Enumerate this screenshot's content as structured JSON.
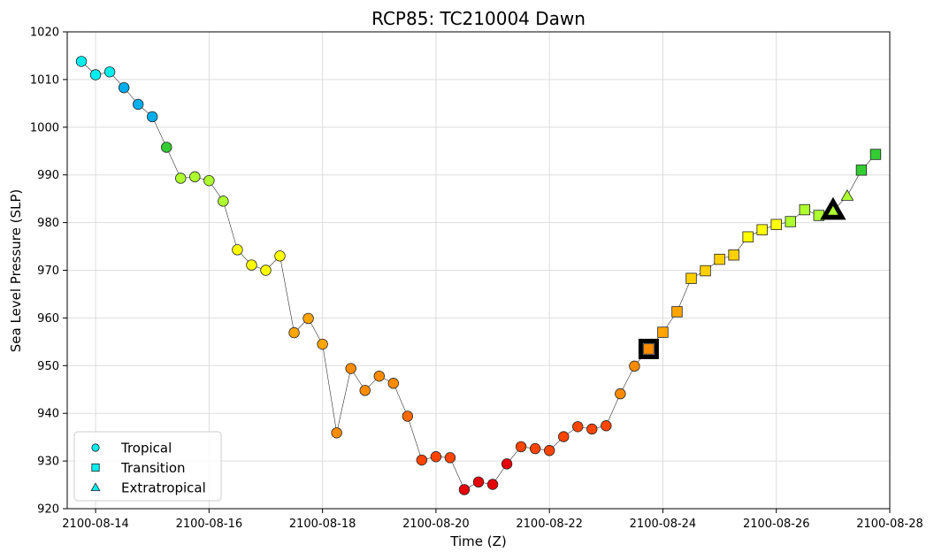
{
  "chart_data": {
    "type": "scatter",
    "title": "RCP85: TC210004 Dawn",
    "xlabel": "Time (Z)",
    "ylabel": "Sea Level Pressure (SLP)",
    "xlim": [
      "2100-08-13T12:00Z",
      "2100-08-28T00:00Z"
    ],
    "ylim": [
      920,
      1020
    ],
    "xticks": [
      "2100-08-14",
      "2100-08-16",
      "2100-08-18",
      "2100-08-20",
      "2100-08-22",
      "2100-08-24",
      "2100-08-26",
      "2100-08-28"
    ],
    "yticks": [
      920,
      930,
      940,
      950,
      960,
      970,
      980,
      990,
      1000,
      1010,
      1020
    ],
    "grid": true,
    "legend": {
      "position": "lower-left",
      "entries": [
        {
          "label": "Tropical",
          "marker": "circle"
        },
        {
          "label": "Transition",
          "marker": "square"
        },
        {
          "label": "Extratropical",
          "marker": "triangle"
        }
      ]
    },
    "connecting_line": true,
    "highlights": [
      {
        "time": "2100-08-23T18:00Z",
        "slp": 953.5,
        "marker": "square"
      },
      {
        "time": "2100-08-27T00:00Z",
        "slp": 982.5,
        "marker": "triangle"
      }
    ],
    "points": [
      {
        "time": "2100-08-13T18:00Z",
        "slp": 1013.8,
        "marker": "circle",
        "color": "#00eeee"
      },
      {
        "time": "2100-08-14T00:00Z",
        "slp": 1011.0,
        "marker": "circle",
        "color": "#00eeee"
      },
      {
        "time": "2100-08-14T06:00Z",
        "slp": 1011.6,
        "marker": "circle",
        "color": "#00eeee"
      },
      {
        "time": "2100-08-14T12:00Z",
        "slp": 1008.3,
        "marker": "circle",
        "color": "#00aeee"
      },
      {
        "time": "2100-08-14T18:00Z",
        "slp": 1004.8,
        "marker": "circle",
        "color": "#00aeee"
      },
      {
        "time": "2100-08-15T00:00Z",
        "slp": 1002.2,
        "marker": "circle",
        "color": "#00aeee"
      },
      {
        "time": "2100-08-15T06:00Z",
        "slp": 995.8,
        "marker": "circle",
        "color": "#33cc33"
      },
      {
        "time": "2100-08-15T12:00Z",
        "slp": 989.3,
        "marker": "circle",
        "color": "#adff2f"
      },
      {
        "time": "2100-08-15T18:00Z",
        "slp": 989.6,
        "marker": "circle",
        "color": "#adff2f"
      },
      {
        "time": "2100-08-16T00:00Z",
        "slp": 988.8,
        "marker": "circle",
        "color": "#adff2f"
      },
      {
        "time": "2100-08-16T06:00Z",
        "slp": 984.5,
        "marker": "circle",
        "color": "#adff2f"
      },
      {
        "time": "2100-08-16T12:00Z",
        "slp": 974.3,
        "marker": "circle",
        "color": "#ffff00"
      },
      {
        "time": "2100-08-16T18:00Z",
        "slp": 971.1,
        "marker": "circle",
        "color": "#ffff00"
      },
      {
        "time": "2100-08-17T00:00Z",
        "slp": 970.0,
        "marker": "circle",
        "color": "#ffff00"
      },
      {
        "time": "2100-08-17T06:00Z",
        "slp": 973.0,
        "marker": "circle",
        "color": "#ffff00"
      },
      {
        "time": "2100-08-17T12:00Z",
        "slp": 956.9,
        "marker": "circle",
        "color": "#ffa500"
      },
      {
        "time": "2100-08-17T18:00Z",
        "slp": 959.9,
        "marker": "circle",
        "color": "#ffa500"
      },
      {
        "time": "2100-08-18T00:00Z",
        "slp": 954.5,
        "marker": "circle",
        "color": "#ffa500"
      },
      {
        "time": "2100-08-18T06:00Z",
        "slp": 935.9,
        "marker": "circle",
        "color": "#ff8c00"
      },
      {
        "time": "2100-08-18T12:00Z",
        "slp": 949.4,
        "marker": "circle",
        "color": "#ff8c00"
      },
      {
        "time": "2100-08-18T18:00Z",
        "slp": 944.8,
        "marker": "circle",
        "color": "#ff8c00"
      },
      {
        "time": "2100-08-19T00:00Z",
        "slp": 947.8,
        "marker": "circle",
        "color": "#ff8c00"
      },
      {
        "time": "2100-08-19T06:00Z",
        "slp": 946.3,
        "marker": "circle",
        "color": "#ff8c00"
      },
      {
        "time": "2100-08-19T12:00Z",
        "slp": 939.4,
        "marker": "circle",
        "color": "#ff6a00"
      },
      {
        "time": "2100-08-19T18:00Z",
        "slp": 930.2,
        "marker": "circle",
        "color": "#ff4500"
      },
      {
        "time": "2100-08-20T00:00Z",
        "slp": 930.9,
        "marker": "circle",
        "color": "#ff4500"
      },
      {
        "time": "2100-08-20T06:00Z",
        "slp": 930.7,
        "marker": "circle",
        "color": "#ff4500"
      },
      {
        "time": "2100-08-20T12:00Z",
        "slp": 924.0,
        "marker": "circle",
        "color": "#e8000b"
      },
      {
        "time": "2100-08-20T18:00Z",
        "slp": 925.6,
        "marker": "circle",
        "color": "#e8000b"
      },
      {
        "time": "2100-08-21T00:00Z",
        "slp": 925.1,
        "marker": "circle",
        "color": "#e8000b"
      },
      {
        "time": "2100-08-21T06:00Z",
        "slp": 929.4,
        "marker": "circle",
        "color": "#e8000b"
      },
      {
        "time": "2100-08-21T12:00Z",
        "slp": 933.0,
        "marker": "circle",
        "color": "#ff4500"
      },
      {
        "time": "2100-08-21T18:00Z",
        "slp": 932.6,
        "marker": "circle",
        "color": "#ff4500"
      },
      {
        "time": "2100-08-22T00:00Z",
        "slp": 932.2,
        "marker": "circle",
        "color": "#ff4500"
      },
      {
        "time": "2100-08-22T06:00Z",
        "slp": 935.1,
        "marker": "circle",
        "color": "#ff4500"
      },
      {
        "time": "2100-08-22T12:00Z",
        "slp": 937.2,
        "marker": "circle",
        "color": "#ff4500"
      },
      {
        "time": "2100-08-22T18:00Z",
        "slp": 936.7,
        "marker": "circle",
        "color": "#ff4500"
      },
      {
        "time": "2100-08-23T00:00Z",
        "slp": 937.4,
        "marker": "circle",
        "color": "#ff4500"
      },
      {
        "time": "2100-08-23T06:00Z",
        "slp": 944.1,
        "marker": "circle",
        "color": "#ff8c00"
      },
      {
        "time": "2100-08-23T12:00Z",
        "slp": 949.9,
        "marker": "circle",
        "color": "#ff8c00"
      },
      {
        "time": "2100-08-23T18:00Z",
        "slp": 953.5,
        "marker": "square",
        "color": "#ff8c00"
      },
      {
        "time": "2100-08-24T00:00Z",
        "slp": 957.0,
        "marker": "square",
        "color": "#ffa500"
      },
      {
        "time": "2100-08-24T06:00Z",
        "slp": 961.3,
        "marker": "square",
        "color": "#ffa500"
      },
      {
        "time": "2100-08-24T12:00Z",
        "slp": 968.3,
        "marker": "square",
        "color": "#ffd000"
      },
      {
        "time": "2100-08-24T18:00Z",
        "slp": 969.9,
        "marker": "square",
        "color": "#ffd000"
      },
      {
        "time": "2100-08-25T00:00Z",
        "slp": 972.3,
        "marker": "square",
        "color": "#ffd000"
      },
      {
        "time": "2100-08-25T06:00Z",
        "slp": 973.2,
        "marker": "square",
        "color": "#ffd000"
      },
      {
        "time": "2100-08-25T12:00Z",
        "slp": 977.0,
        "marker": "square",
        "color": "#ffff00"
      },
      {
        "time": "2100-08-25T18:00Z",
        "slp": 978.5,
        "marker": "square",
        "color": "#ffff00"
      },
      {
        "time": "2100-08-26T00:00Z",
        "slp": 979.6,
        "marker": "square",
        "color": "#ffff00"
      },
      {
        "time": "2100-08-26T06:00Z",
        "slp": 980.2,
        "marker": "square",
        "color": "#adff2f"
      },
      {
        "time": "2100-08-26T12:00Z",
        "slp": 982.7,
        "marker": "square",
        "color": "#adff2f"
      },
      {
        "time": "2100-08-26T18:00Z",
        "slp": 981.5,
        "marker": "square",
        "color": "#adff2f"
      },
      {
        "time": "2100-08-27T00:00Z",
        "slp": 982.5,
        "marker": "triangle",
        "color": "#adff2f"
      },
      {
        "time": "2100-08-27T06:00Z",
        "slp": 985.6,
        "marker": "triangle",
        "color": "#adff2f"
      },
      {
        "time": "2100-08-27T12:00Z",
        "slp": 991.0,
        "marker": "square",
        "color": "#33cc33"
      },
      {
        "time": "2100-08-27T18:00Z",
        "slp": 994.3,
        "marker": "square",
        "color": "#33cc33"
      }
    ]
  }
}
